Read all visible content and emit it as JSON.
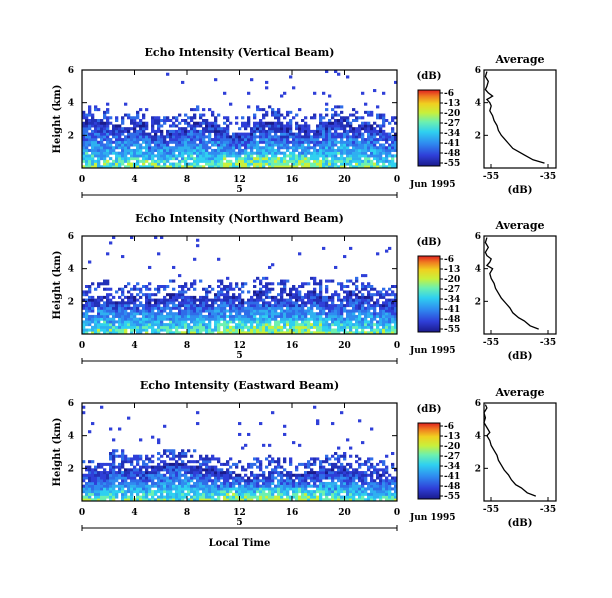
{
  "chart_data": [
    {
      "type": "heatmap",
      "title": "Echo Intensity (Vertical Beam)",
      "ylabel": "Height (km)",
      "xticks": [
        "0",
        "4",
        "8",
        "12",
        "16",
        "20",
        "0"
      ],
      "yticks": [
        "2",
        "4",
        "6"
      ],
      "ylim": [
        0,
        6
      ],
      "date_label": "Jun 1995",
      "day_label": "5",
      "colorbar": {
        "unit": "(dB)",
        "ticks": [
          "-6",
          "-13",
          "-20",
          "-27",
          "-34",
          "-41",
          "-48",
          "-55"
        ],
        "range": [
          -55,
          -6
        ]
      },
      "profile": {
        "title": "Average",
        "xlabel": "(dB)",
        "xticks": [
          "-55",
          "-35"
        ],
        "yticks": [
          "2",
          "4",
          "6"
        ],
        "xlim": [
          -55,
          -30
        ],
        "ylim": [
          0,
          6
        ],
        "heights": [
          0.3,
          0.5,
          0.8,
          1.0,
          1.2,
          1.5,
          1.8,
          2.0,
          2.3,
          2.6,
          2.9,
          3.2,
          3.5,
          3.8,
          4.0,
          4.2,
          4.3,
          4.4,
          4.6,
          4.8,
          5.0,
          5.3,
          5.6,
          5.9
        ],
        "values": [
          -34,
          -38,
          -41,
          -43,
          -45,
          -46.5,
          -48,
          -49,
          -50,
          -50.5,
          -51.5,
          -52,
          -53,
          -52.5,
          -53,
          -54,
          -53,
          -52,
          -53.5,
          -54.5,
          -54,
          -53.5,
          -54.5,
          -54
        ]
      },
      "field_top_km": [
        3.0,
        2.8,
        2.6,
        2.5,
        2.8,
        2.3,
        2.2,
        2.5,
        2.9,
        2.7,
        2.4,
        2.0,
        2.3,
        2.8,
        2.9,
        2.6,
        2.5,
        2.4,
        2.8,
        3.0,
        2.7,
        2.6,
        2.4,
        2.2
      ]
    },
    {
      "type": "heatmap",
      "title": "Echo Intensity (Northward Beam)",
      "ylabel": "Height (km)",
      "xticks": [
        "0",
        "4",
        "8",
        "12",
        "16",
        "20",
        "0"
      ],
      "yticks": [
        "2",
        "4",
        "6"
      ],
      "ylim": [
        0,
        6
      ],
      "date_label": "Jun 1995",
      "day_label": "5",
      "colorbar": {
        "unit": "(dB)",
        "ticks": [
          "-6",
          "-13",
          "-20",
          "-27",
          "-34",
          "-41",
          "-48",
          "-55"
        ],
        "range": [
          -55,
          -6
        ]
      },
      "profile": {
        "title": "Average",
        "xlabel": "(dB)",
        "xticks": [
          "-55",
          "-35"
        ],
        "yticks": [
          "2",
          "4",
          "6"
        ],
        "xlim": [
          -55,
          -30
        ],
        "ylim": [
          0,
          6
        ],
        "heights": [
          0.3,
          0.5,
          0.8,
          1.0,
          1.3,
          1.6,
          1.9,
          2.2,
          2.5,
          2.8,
          3.1,
          3.4,
          3.7,
          4.0,
          4.2,
          4.4,
          4.6,
          4.8,
          5.0,
          5.3,
          5.6,
          5.9
        ],
        "values": [
          -36,
          -39,
          -41,
          -43,
          -45,
          -46,
          -47.5,
          -49,
          -50,
          -51,
          -51.5,
          -52.5,
          -53,
          -52,
          -54,
          -53,
          -52.5,
          -54,
          -54.5,
          -53.5,
          -54.5,
          -54
        ]
      },
      "field_top_km": [
        2.2,
        2.4,
        2.0,
        2.3,
        2.2,
        2.1,
        2.5,
        2.3,
        2.4,
        2.1,
        2.5,
        2.3,
        2.2,
        2.6,
        2.4,
        2.5,
        2.3,
        2.6,
        2.4,
        2.2,
        2.6,
        2.3,
        2.0,
        2.1
      ]
    },
    {
      "type": "heatmap",
      "title": "Echo Intensity (Eastward Beam)",
      "ylabel": "Height (km)",
      "xlabel": "Local Time",
      "xticks": [
        "0",
        "4",
        "8",
        "12",
        "16",
        "20",
        "0"
      ],
      "yticks": [
        "2",
        "4",
        "6"
      ],
      "ylim": [
        0,
        6
      ],
      "date_label": "Jun 1995",
      "day_label": "5",
      "colorbar": {
        "unit": "(dB)",
        "ticks": [
          "-6",
          "-13",
          "-20",
          "-27",
          "-34",
          "-41",
          "-48",
          "-55"
        ],
        "range": [
          -55,
          -6
        ]
      },
      "profile": {
        "title": "Average",
        "xlabel": "(dB)",
        "xticks": [
          "-55",
          "-35"
        ],
        "yticks": [
          "2",
          "4",
          "6"
        ],
        "xlim": [
          -55,
          -30
        ],
        "ylim": [
          0,
          6
        ],
        "heights": [
          0.3,
          0.5,
          0.8,
          1.0,
          1.3,
          1.6,
          1.9,
          2.2,
          2.5,
          2.8,
          3.1,
          3.4,
          3.7,
          4.0,
          4.2,
          4.5,
          4.8,
          5.1,
          5.4,
          5.7,
          5.9
        ],
        "values": [
          -37,
          -40,
          -42,
          -44,
          -45.5,
          -46.5,
          -48,
          -49,
          -50,
          -50.5,
          -51.5,
          -52.5,
          -53,
          -54,
          -53,
          -54,
          -55,
          -54.5,
          -55,
          -54,
          -54.5
        ]
      },
      "field_top_km": [
        1.6,
        1.8,
        2.2,
        2.0,
        1.9,
        2.1,
        2.3,
        2.4,
        2.2,
        2.0,
        1.8,
        1.6,
        1.5,
        1.7,
        1.9,
        1.8,
        1.6,
        1.8,
        2.0,
        2.1,
        1.9,
        1.7,
        1.6,
        1.5
      ]
    }
  ]
}
